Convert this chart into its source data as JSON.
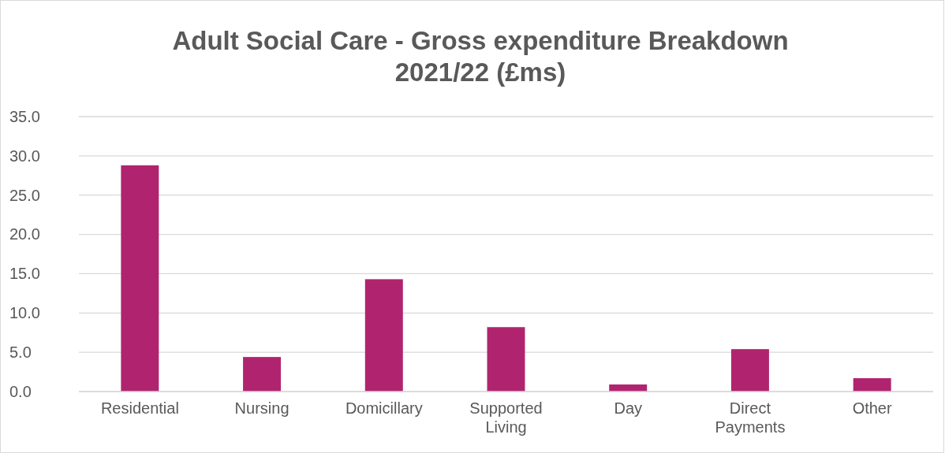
{
  "chart_data": {
    "type": "bar",
    "title": "Adult Social Care - Gross expenditure Breakdown 2021/22 (£ms)",
    "categories": [
      "Residential",
      "Nursing",
      "Domicillary",
      "Supported Living",
      "Day",
      "Direct Payments",
      "Other"
    ],
    "values": [
      28.8,
      4.4,
      14.3,
      8.2,
      0.9,
      5.4,
      1.7
    ],
    "color": "#b0246f",
    "ylim": [
      0,
      35
    ],
    "yticks": [
      {
        "value": 0,
        "label": "0.0"
      },
      {
        "value": 5,
        "label": "5.0"
      },
      {
        "value": 10,
        "label": "10.0"
      },
      {
        "value": 15,
        "label": "15.0"
      },
      {
        "value": 20,
        "label": "20.0"
      },
      {
        "value": 25,
        "label": "25.0"
      },
      {
        "value": 30,
        "label": "30.0"
      },
      {
        "value": 35,
        "label": "35.0"
      }
    ],
    "grid": "y"
  }
}
